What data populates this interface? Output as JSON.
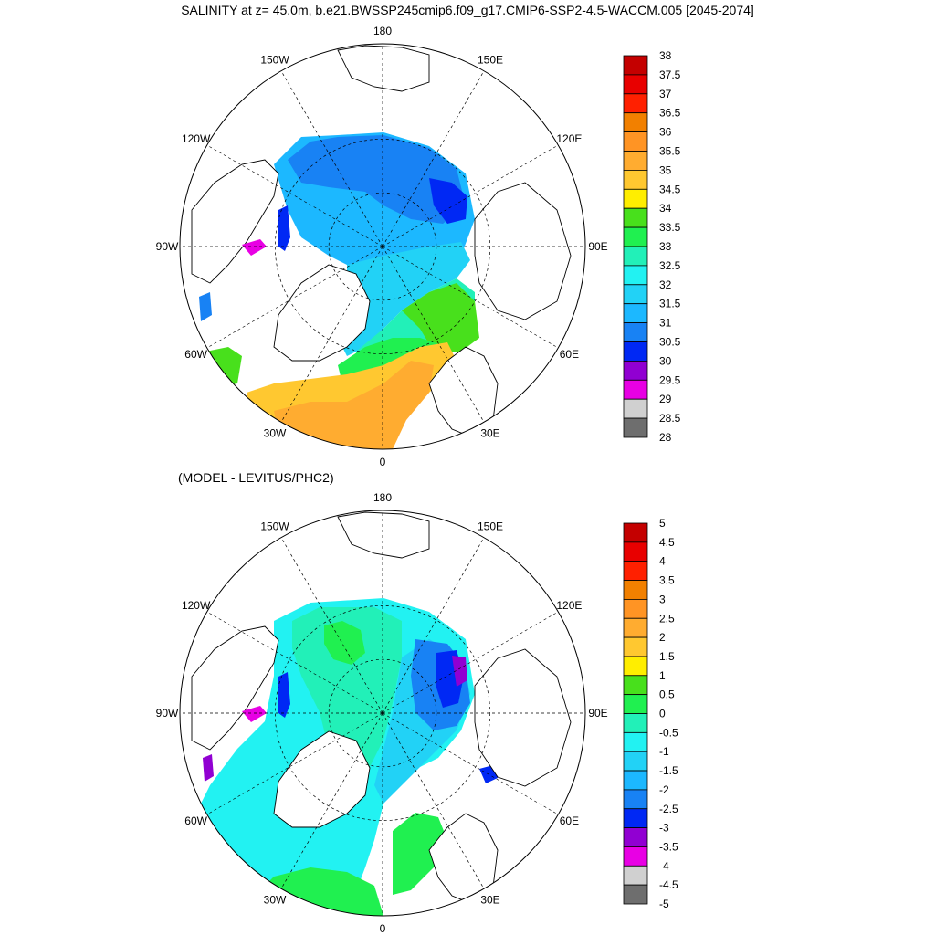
{
  "title": "SALINITY at z=  45.0m, b.e21.BWSSP245cmip6.f09_g17.CMIP6-SSP2-4.5-WACCM.005 [2045-2074]",
  "subtitle": "(MODEL - LEVITUS/PHC2)",
  "lon_labels": [
    "180",
    "150E",
    "120E",
    "90E",
    "60E",
    "30E",
    "0",
    "30W",
    "60W",
    "90W",
    "120W",
    "150W"
  ],
  "colors": {
    "land": "#ffffff",
    "coast": "#000000"
  },
  "map_top": {
    "name": "salinity-map",
    "colorbar": {
      "labels": [
        "38",
        "37.5",
        "37",
        "36.5",
        "36",
        "35.5",
        "35",
        "34.5",
        "34",
        "33.5",
        "33",
        "32.5",
        "32",
        "31.5",
        "31",
        "30.5",
        "30",
        "29.5",
        "29",
        "28.5",
        "28"
      ],
      "colors": [
        "#c40000",
        "#e80000",
        "#ff2000",
        "#f28000",
        "#ff9424",
        "#ffac30",
        "#ffc830",
        "#ffee00",
        "#48e01c",
        "#20f050",
        "#22f0b8",
        "#22f2f2",
        "#22d2f6",
        "#1cb8ff",
        "#1882f4",
        "#0028f4",
        "#9100d2",
        "#e800e4",
        "#d0d0d0",
        "#6e6e6e"
      ]
    }
  },
  "map_bottom": {
    "name": "difference-map",
    "colorbar": {
      "labels": [
        "5",
        "4.5",
        "4",
        "3.5",
        "3",
        "2.5",
        "2",
        "1.5",
        "1",
        "0.5",
        "0",
        "-0.5",
        "-1",
        "-1.5",
        "-2",
        "-2.5",
        "-3",
        "-3.5",
        "-4",
        "-4.5",
        "-5"
      ],
      "colors": [
        "#c40000",
        "#e80000",
        "#ff2000",
        "#f28000",
        "#ff9424",
        "#ffac30",
        "#ffc830",
        "#ffee00",
        "#48e01c",
        "#20f050",
        "#22f0b8",
        "#22f2f2",
        "#22d2f6",
        "#1cb8ff",
        "#1882f4",
        "#0028f4",
        "#9100d2",
        "#e800e4",
        "#d0d0d0",
        "#6e6e6e"
      ]
    }
  }
}
